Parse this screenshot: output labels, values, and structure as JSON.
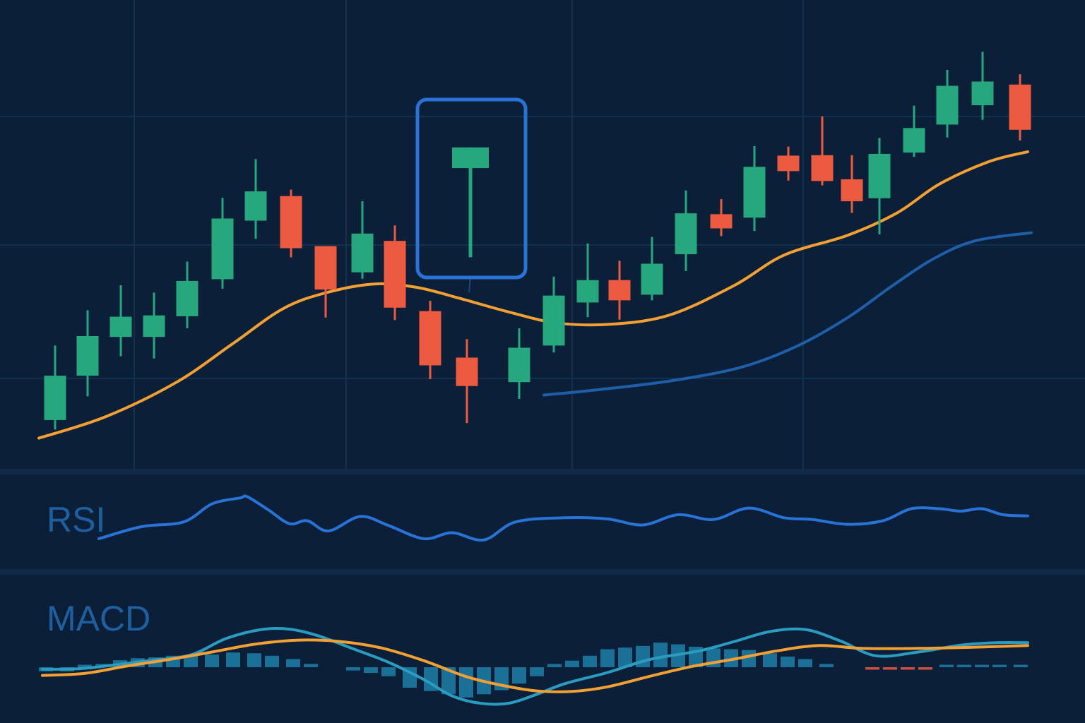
{
  "colors": {
    "background": "#0b1f38",
    "grid": "#14304f",
    "divider": "#102a47",
    "bullish": "#27a77d",
    "bearish": "#ec5a3f",
    "sma": "#f2a033",
    "long_ma": "#1f5fa8",
    "rsi": "#2a73d6",
    "macd_line": "#2b9bc0",
    "signal_line": "#f2a033",
    "hist_blue": "#1f7fa8",
    "hist_red": "#ec5a3f",
    "highlight_box": "#2a73d6",
    "label": "#1f5fa0"
  },
  "labels": {
    "rsi": "RSI",
    "macd": "MACD"
  },
  "chart_data": [
    {
      "type": "candlestick",
      "panel": "price",
      "title": "",
      "xlabel": "",
      "ylabel": "",
      "grid": true,
      "ylim": [
        0,
        100
      ],
      "candles": [
        {
          "x": 78,
          "open": 8.7,
          "close": 19.0,
          "high": 26.0,
          "low": 6.5
        },
        {
          "x": 124,
          "open": 19.0,
          "close": 28.2,
          "high": 34.2,
          "low": 14.2
        },
        {
          "x": 171,
          "open": 28.0,
          "close": 32.7,
          "high": 40.0,
          "low": 23.5
        },
        {
          "x": 218,
          "open": 28.0,
          "close": 33.0,
          "high": 38.3,
          "low": 23.0
        },
        {
          "x": 265,
          "open": 32.8,
          "close": 41.0,
          "high": 45.5,
          "low": 30.0
        },
        {
          "x": 315,
          "open": 41.4,
          "close": 55.5,
          "high": 60.3,
          "low": 39.2
        },
        {
          "x": 362,
          "open": 55.0,
          "close": 61.8,
          "high": 69.3,
          "low": 50.8
        },
        {
          "x": 412,
          "open": 60.7,
          "close": 48.6,
          "high": 62.2,
          "low": 46.5
        },
        {
          "x": 461,
          "open": 49.1,
          "close": 39.0,
          "high": 49.1,
          "low": 32.5
        },
        {
          "x": 513,
          "open": 43.0,
          "close": 52.0,
          "high": 59.5,
          "low": 41.5
        },
        {
          "x": 559,
          "open": 50.3,
          "close": 34.8,
          "high": 53.9,
          "low": 31.9
        },
        {
          "x": 609,
          "open": 34.0,
          "close": 21.4,
          "high": 36.4,
          "low": 18.2
        },
        {
          "x": 661,
          "open": 23.2,
          "close": 16.6,
          "high": 27.5,
          "low": 8.0
        },
        {
          "x": 735,
          "open": 17.5,
          "close": 25.5,
          "high": 30.0,
          "low": 13.6
        },
        {
          "x": 784,
          "open": 26.0,
          "close": 37.6,
          "high": 42.0,
          "low": 24.4
        },
        {
          "x": 832,
          "open": 36.0,
          "close": 41.2,
          "high": 49.7,
          "low": 32.6
        },
        {
          "x": 877,
          "open": 41.2,
          "close": 36.5,
          "high": 45.7,
          "low": 32.0
        },
        {
          "x": 923,
          "open": 37.8,
          "close": 45.0,
          "high": 51.2,
          "low": 36.5
        },
        {
          "x": 971,
          "open": 47.2,
          "close": 56.7,
          "high": 62.0,
          "low": 43.3
        },
        {
          "x": 1021,
          "open": 56.5,
          "close": 53.2,
          "high": 60.0,
          "low": 51.4
        },
        {
          "x": 1068,
          "open": 55.7,
          "close": 67.5,
          "high": 72.3,
          "low": 52.6
        },
        {
          "x": 1116,
          "open": 70.1,
          "close": 66.5,
          "high": 72.2,
          "low": 64.3
        },
        {
          "x": 1164,
          "open": 70.2,
          "close": 64.2,
          "high": 79.2,
          "low": 63.2
        },
        {
          "x": 1206,
          "open": 64.6,
          "close": 59.5,
          "high": 70.2,
          "low": 56.8
        },
        {
          "x": 1245,
          "open": 60.2,
          "close": 70.5,
          "high": 74.2,
          "low": 51.8
        },
        {
          "x": 1294,
          "open": 70.8,
          "close": 76.5,
          "high": 81.7,
          "low": 69.8
        },
        {
          "x": 1341,
          "open": 77.3,
          "close": 86.3,
          "high": 90.0,
          "low": 74.3
        },
        {
          "x": 1391,
          "open": 81.8,
          "close": 87.3,
          "high": 94.2,
          "low": 78.4
        },
        {
          "x": 1444,
          "open": 86.6,
          "close": 76.1,
          "high": 89.0,
          "low": 73.6
        }
      ],
      "highlight": {
        "x": 666,
        "open": 72.0,
        "close": 67.2,
        "high": 72.0,
        "low": 46.5
      },
      "series": [
        {
          "line": "sma",
          "x": [
            55,
            150,
            250,
            330,
            400,
            460,
            530,
            590,
            650,
            720,
            790,
            870,
            950,
            1040,
            1110,
            1200,
            1270,
            1330,
            1400,
            1455
          ],
          "values": [
            4.5,
            9.5,
            17.5,
            26.5,
            34.5,
            38.2,
            40.3,
            39.5,
            37.0,
            33.8,
            31.2,
            31.0,
            33.2,
            40.0,
            47.0,
            51.6,
            56.8,
            63.5,
            68.7,
            71.0
          ]
        },
        {
          "line": "long_ma",
          "x": [
            770,
            850,
            950,
            1050,
            1130,
            1200,
            1260,
            1320,
            1380,
            1460
          ],
          "values": [
            14.5,
            15.8,
            17.8,
            21.0,
            26.0,
            32.5,
            39.5,
            46.0,
            50.3,
            52.2
          ]
        }
      ]
    },
    {
      "type": "line",
      "panel": "rsi",
      "title": "RSI",
      "xlabel": "",
      "ylabel": "",
      "ylim": [
        0,
        100
      ],
      "series": [
        {
          "x": [
            140,
            200,
            260,
            300,
            340,
            350,
            380,
            410,
            435,
            465,
            510,
            550,
            600,
            640,
            685,
            730,
            800,
            860,
            910,
            960,
            1010,
            1060,
            1110,
            1150,
            1200,
            1250,
            1290,
            1330,
            1360,
            1390,
            1420,
            1455
          ],
          "values": [
            20,
            40,
            48,
            78,
            88,
            90,
            68,
            45,
            50,
            33,
            57,
            42,
            20,
            30,
            18,
            48,
            55,
            53,
            43,
            60,
            52,
            71,
            55,
            52,
            44,
            50,
            70,
            70,
            66,
            70,
            60,
            58
          ]
        }
      ]
    },
    {
      "type": "line",
      "panel": "macd",
      "title": "MACD",
      "xlabel": "",
      "ylabel": "",
      "ylim": [
        -100,
        100
      ],
      "series": [
        {
          "line": "macd",
          "x": [
            60,
            110,
            160,
            210,
            270,
            320,
            370,
            410,
            450,
            500,
            550,
            600,
            640,
            680,
            720,
            760,
            800,
            860,
            920,
            990,
            1040,
            1090,
            1140,
            1190,
            1240,
            1300,
            1360,
            1410,
            1455
          ],
          "values": [
            -5,
            -4,
            5,
            16,
            30,
            70,
            92,
            93,
            77,
            45,
            12,
            -30,
            -70,
            -88,
            -88,
            -66,
            -40,
            -13,
            19,
            40,
            63,
            87,
            92,
            64,
            28,
            37,
            54,
            60,
            60
          ]
        },
        {
          "line": "signal",
          "x": [
            60,
            120,
            180,
            240,
            300,
            360,
            420,
            480,
            540,
            600,
            660,
            710,
            760,
            810,
            860,
            920,
            980,
            1040,
            1100,
            1160,
            1220,
            1300,
            1380,
            1455
          ],
          "values": [
            -20,
            -15,
            3,
            19,
            37,
            56,
            66,
            63,
            47,
            16,
            -23,
            -44,
            -58,
            -59,
            -48,
            -22,
            2,
            20,
            40,
            53,
            46,
            46,
            49,
            53
          ]
        }
      ],
      "histogram": {
        "x": [
          65,
          95,
          120,
          145,
          170,
          195,
          220,
          245,
          270,
          300,
          330,
          360,
          385,
          415,
          440,
          500,
          525,
          550,
          580,
          610,
          635,
          660,
          685,
          710,
          735,
          760,
          785,
          810,
          835,
          860,
          885,
          910,
          935,
          960,
          985,
          1010,
          1035,
          1060,
          1090,
          1115,
          1140,
          1170,
          1235,
          1260,
          1285,
          1310,
          1340,
          1365,
          1390,
          1415,
          1445
        ],
        "values": [
          -10,
          -10,
          6,
          8,
          17,
          22,
          24,
          28,
          28,
          31,
          36,
          34,
          28,
          20,
          8,
          -8,
          -14,
          -22,
          -50,
          -58,
          -66,
          -74,
          -66,
          -56,
          -40,
          -22,
          8,
          16,
          28,
          44,
          48,
          52,
          60,
          56,
          50,
          46,
          44,
          42,
          34,
          26,
          20,
          8,
          -6,
          -6,
          -6,
          -6,
          6,
          6,
          6,
          6,
          6
        ],
        "colors": [
          "blue",
          "blue",
          "blue",
          "blue",
          "blue",
          "blue",
          "blue",
          "blue",
          "blue",
          "blue",
          "blue",
          "blue",
          "blue",
          "blue",
          "blue",
          "blue",
          "blue",
          "blue",
          "blue",
          "blue",
          "blue",
          "blue",
          "blue",
          "blue",
          "blue",
          "blue",
          "blue",
          "blue",
          "blue",
          "blue",
          "blue",
          "blue",
          "blue",
          "blue",
          "blue",
          "blue",
          "blue",
          "blue",
          "blue",
          "blue",
          "blue",
          "blue",
          "red",
          "red",
          "red",
          "red",
          "blue",
          "blue",
          "blue",
          "blue",
          "blue"
        ]
      }
    }
  ]
}
